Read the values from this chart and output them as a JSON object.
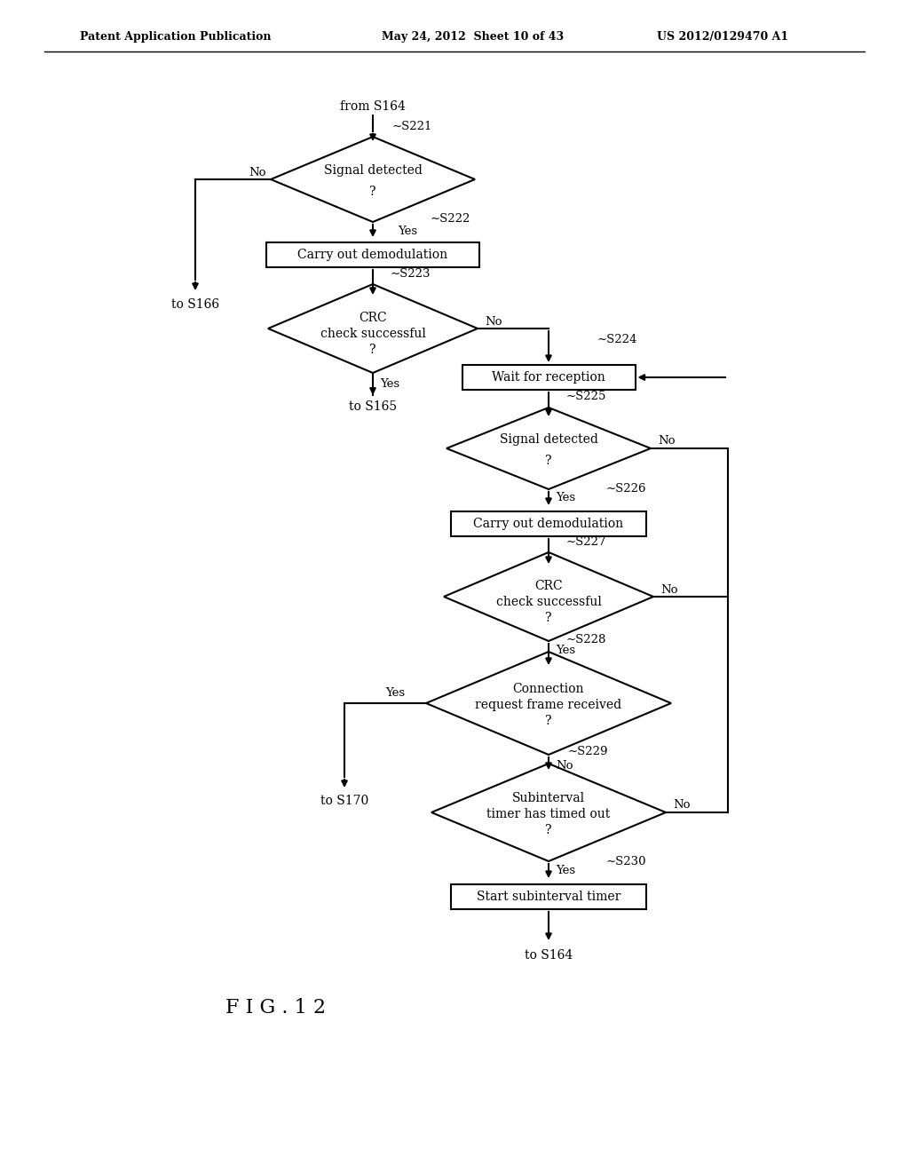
{
  "title_left": "Patent Application Publication",
  "title_mid": "May 24, 2012  Sheet 10 of 43",
  "title_right": "US 2012/0129470 A1",
  "fig_label": "FIG. 12",
  "bg_color": "#ffffff",
  "line_color": "#000000",
  "text_color": "#000000"
}
